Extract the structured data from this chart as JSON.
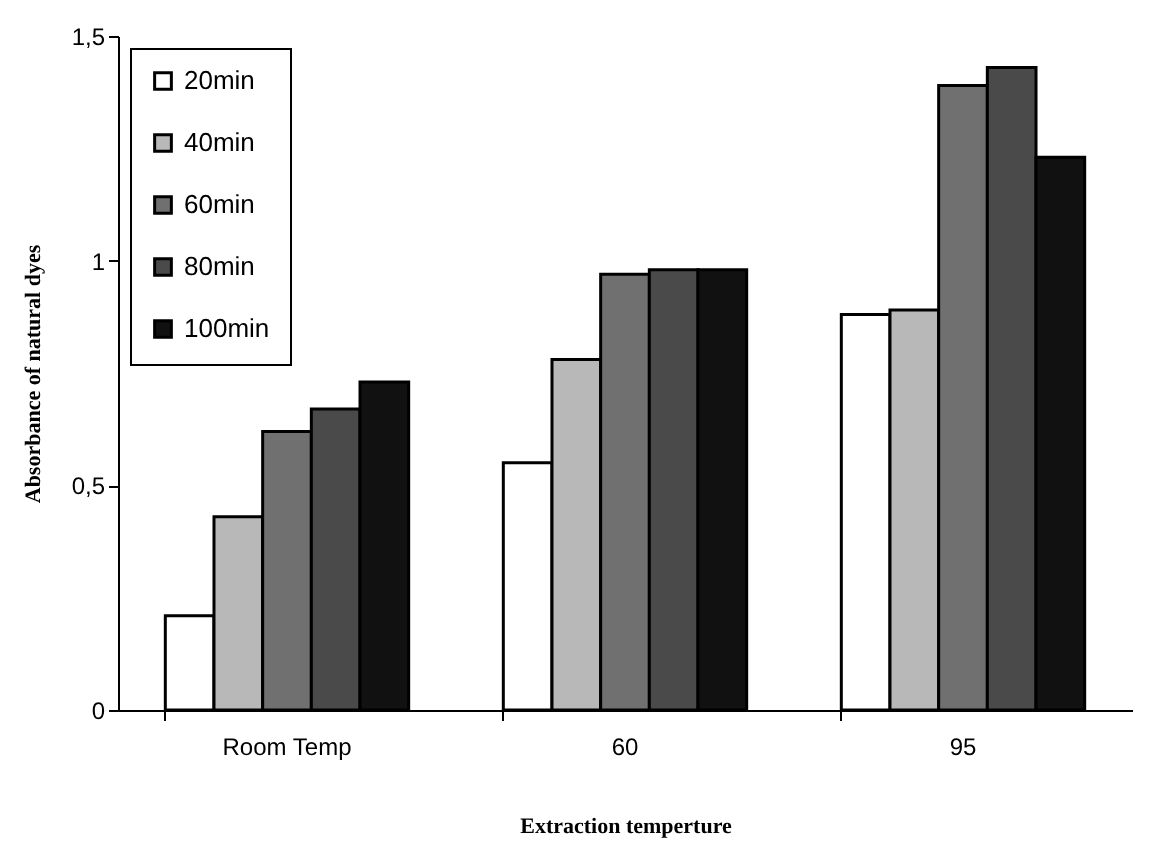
{
  "chart_data": {
    "type": "bar",
    "xlabel": "Extraction temperture",
    "ylabel": "Absorbance of natural dyes",
    "categories": [
      "Room Temp",
      "60",
      "95"
    ],
    "series": [
      {
        "name": "20min",
        "color": "#ffffff",
        "values": [
          0.21,
          0.55,
          0.88
        ]
      },
      {
        "name": "40min",
        "color": "#b8b8b8",
        "values": [
          0.43,
          0.78,
          0.89
        ]
      },
      {
        "name": "60min",
        "color": "#707070",
        "values": [
          0.62,
          0.97,
          1.39
        ]
      },
      {
        "name": "80min",
        "color": "#4a4a4a",
        "values": [
          0.67,
          0.98,
          1.43
        ]
      },
      {
        "name": "100min",
        "color": "#111111",
        "values": [
          0.73,
          0.98,
          1.23
        ]
      }
    ],
    "ylim": [
      0,
      1.5
    ],
    "yticks": [
      {
        "value": 0,
        "label": "0"
      },
      {
        "value": 0.5,
        "label": "0,5"
      },
      {
        "value": 1,
        "label": "1"
      },
      {
        "value": 1.5,
        "label": "1,5"
      }
    ],
    "grid": false,
    "legend": "top left"
  }
}
